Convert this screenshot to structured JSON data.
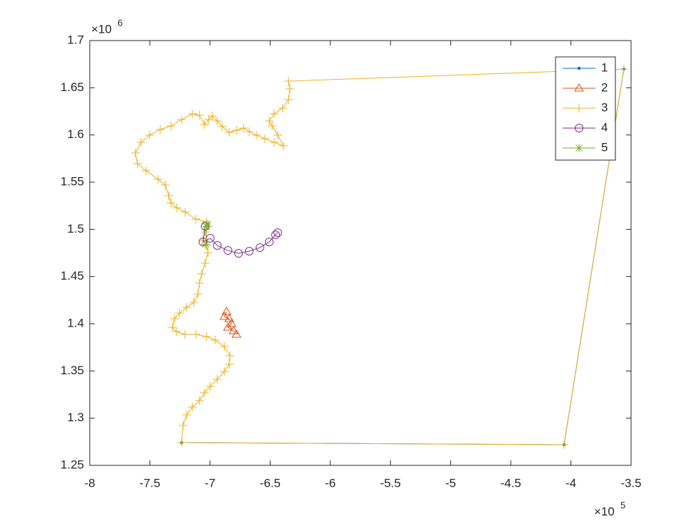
{
  "chart_data": {
    "type": "line",
    "xlim": [
      -8,
      -3.5
    ],
    "ylim": [
      1.25,
      1.7
    ],
    "xticks": [
      -8,
      -7.5,
      -7,
      -6.5,
      -6,
      -5.5,
      -5,
      -4.5,
      -4,
      -3.5
    ],
    "yticks": [
      1.25,
      1.3,
      1.35,
      1.4,
      1.45,
      1.5,
      1.55,
      1.6,
      1.65,
      1.7
    ],
    "x_multiplier": {
      "base": "×10",
      "exponent": "5"
    },
    "y_multiplier": {
      "base": "×10",
      "exponent": "6"
    },
    "legend": "upper-right",
    "series": [
      {
        "name": "1",
        "color": "#0072BD",
        "marker": ".",
        "x": [
          -3.56,
          -4.057,
          -7.236
        ],
        "values": [
          1.6698,
          1.2719,
          1.2741
        ]
      },
      {
        "name": "2",
        "color": "#D95319",
        "marker": "^",
        "x": [
          -6.863,
          -6.881,
          -6.84,
          -6.822,
          -6.851,
          -6.804,
          -6.78
        ],
        "values": [
          1.4128,
          1.4075,
          1.4053,
          1.4,
          1.3962,
          1.3925,
          1.3887
        ]
      },
      {
        "name": "3",
        "color": "#EDB120",
        "marker": "+",
        "x": [
          -7.236,
          -7.224,
          -7.195,
          -7.147,
          -7.088,
          -7.047,
          -6.999,
          -6.94,
          -6.881,
          -6.84,
          -6.834,
          -6.881,
          -6.958,
          -7.029,
          -7.118,
          -7.207,
          -7.278,
          -7.313,
          -7.295,
          -7.254,
          -7.195,
          -7.136,
          -7.1,
          -7.088,
          -7.07,
          -7.041,
          -7.017,
          -7.029,
          -7.059,
          -7.041,
          -7.011,
          -7.029,
          -7.118,
          -7.207,
          -7.278,
          -7.325,
          -7.343,
          -7.372,
          -7.432,
          -7.532,
          -7.603,
          -7.621,
          -7.574,
          -7.503,
          -7.414,
          -7.325,
          -7.236,
          -7.147,
          -7.088,
          -7.047,
          -7.011,
          -6.982,
          -6.94,
          -6.899,
          -6.84,
          -6.78,
          -6.721,
          -6.674,
          -6.615,
          -6.544,
          -6.467,
          -6.39,
          -6.437,
          -6.484,
          -6.508,
          -6.467,
          -6.396,
          -6.348,
          -6.336,
          -6.348,
          -3.56,
          -4.057,
          -7.236
        ],
        "values": [
          1.2741,
          1.2922,
          1.3035,
          1.3118,
          1.3186,
          1.3269,
          1.3337,
          1.3412,
          1.3495,
          1.357,
          1.3661,
          1.3759,
          1.3827,
          1.3864,
          1.3887,
          1.3887,
          1.3917,
          1.3962,
          1.4053,
          1.4113,
          1.4173,
          1.4226,
          1.4317,
          1.443,
          1.4528,
          1.4641,
          1.4754,
          1.4829,
          1.4882,
          1.4972,
          1.5033,
          1.5078,
          1.5108,
          1.5183,
          1.5229,
          1.5281,
          1.5357,
          1.547,
          1.553,
          1.5621,
          1.5696,
          1.5809,
          1.5922,
          1.5998,
          1.6058,
          1.6095,
          1.6163,
          1.6224,
          1.6209,
          1.6111,
          1.6163,
          1.6201,
          1.6148,
          1.6088,
          1.6028,
          1.605,
          1.6073,
          1.6035,
          1.5998,
          1.596,
          1.5922,
          1.5884,
          1.5998,
          1.6095,
          1.6148,
          1.6224,
          1.6284,
          1.6374,
          1.6487,
          1.657,
          1.6698,
          1.2719,
          1.2741
        ]
      },
      {
        "name": "4",
        "color": "#7E2F8E",
        "marker": "o",
        "x": [
          -7.041,
          -7.059,
          -6.999,
          -6.94,
          -6.851,
          -6.763,
          -6.674,
          -6.585,
          -6.508,
          -6.455,
          -6.437
        ],
        "values": [
          1.5033,
          1.4867,
          1.4905,
          1.4829,
          1.4776,
          1.4746,
          1.4769,
          1.4807,
          1.4867,
          1.4942,
          1.4965
        ]
      },
      {
        "name": "5",
        "color": "#77AC30",
        "marker": "*",
        "x": [
          -7.026,
          -7.029,
          -7.035
        ],
        "values": [
          1.5056,
          1.5033,
          1.4841
        ]
      }
    ]
  }
}
